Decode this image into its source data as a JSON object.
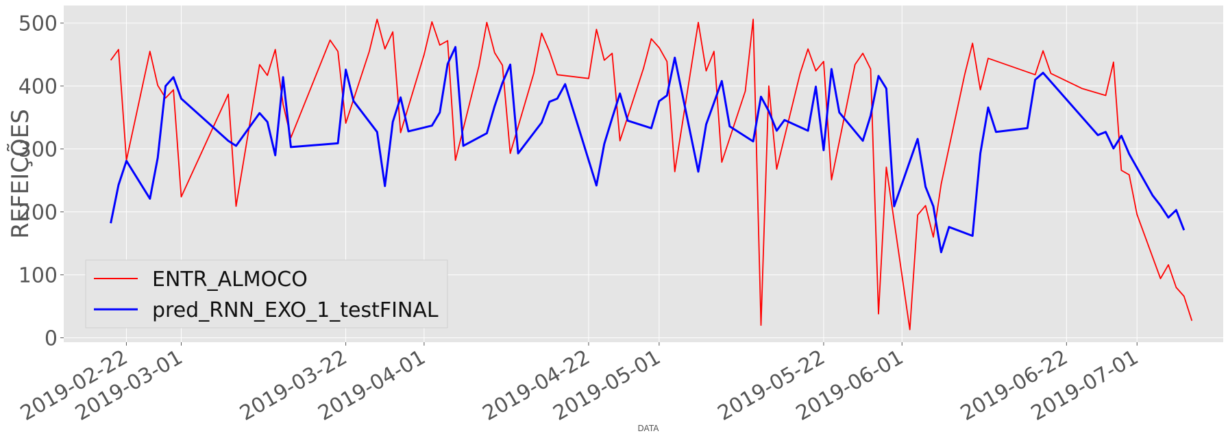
{
  "chart_data": {
    "type": "line",
    "title": "",
    "xlabel": "DATA",
    "ylabel": "REFEIÇÕES",
    "xlim": [
      "2019-02-14",
      "2019-07-12"
    ],
    "ylim": [
      -7,
      528
    ],
    "y_ticks": [
      0,
      100,
      200,
      300,
      400,
      500
    ],
    "x_tick_labels": [
      "2019-02-22",
      "2019-03-01",
      "2019-03-22",
      "2019-04-01",
      "2019-04-22",
      "2019-05-01",
      "2019-05-22",
      "2019-06-01",
      "2019-06-22",
      "2019-07-01"
    ],
    "grid": true,
    "legend_position": "bottom-left",
    "series": [
      {
        "name": "ENTR_ALMOCO",
        "color": "#ff0000",
        "points": [
          [
            "2019-02-20",
            441
          ],
          [
            "2019-02-21",
            458
          ],
          [
            "2019-02-22",
            282
          ],
          [
            "2019-02-25",
            455
          ],
          [
            "2019-02-26",
            401
          ],
          [
            "2019-02-27",
            381
          ],
          [
            "2019-02-28",
            394
          ],
          [
            "2019-03-01",
            224
          ],
          [
            "2019-03-07",
            387
          ],
          [
            "2019-03-08",
            209
          ],
          [
            "2019-03-11",
            434
          ],
          [
            "2019-03-12",
            417
          ],
          [
            "2019-03-13",
            458
          ],
          [
            "2019-03-14",
            371
          ],
          [
            "2019-03-15",
            318
          ],
          [
            "2019-03-20",
            473
          ],
          [
            "2019-03-21",
            455
          ],
          [
            "2019-03-22",
            341
          ],
          [
            "2019-03-25",
            455
          ],
          [
            "2019-03-26",
            506
          ],
          [
            "2019-03-27",
            459
          ],
          [
            "2019-03-28",
            486
          ],
          [
            "2019-03-29",
            326
          ],
          [
            "2019-04-01",
            450
          ],
          [
            "2019-04-02",
            502
          ],
          [
            "2019-04-03",
            465
          ],
          [
            "2019-04-04",
            472
          ],
          [
            "2019-04-05",
            282
          ],
          [
            "2019-04-08",
            432
          ],
          [
            "2019-04-09",
            501
          ],
          [
            "2019-04-10",
            453
          ],
          [
            "2019-04-11",
            433
          ],
          [
            "2019-04-12",
            293
          ],
          [
            "2019-04-15",
            420
          ],
          [
            "2019-04-16",
            484
          ],
          [
            "2019-04-17",
            455
          ],
          [
            "2019-04-18",
            418
          ],
          [
            "2019-04-22",
            412
          ],
          [
            "2019-04-23",
            490
          ],
          [
            "2019-04-24",
            441
          ],
          [
            "2019-04-25",
            452
          ],
          [
            "2019-04-26",
            313
          ],
          [
            "2019-04-29",
            428
          ],
          [
            "2019-04-30",
            475
          ],
          [
            "2019-05-01",
            461
          ],
          [
            "2019-05-02",
            439
          ],
          [
            "2019-05-03",
            264
          ],
          [
            "2019-05-06",
            501
          ],
          [
            "2019-05-07",
            424
          ],
          [
            "2019-05-08",
            455
          ],
          [
            "2019-05-09",
            279
          ],
          [
            "2019-05-12",
            392
          ],
          [
            "2019-05-13",
            506
          ],
          [
            "2019-05-14",
            20
          ],
          [
            "2019-05-15",
            400
          ],
          [
            "2019-05-16",
            268
          ],
          [
            "2019-05-19",
            420
          ],
          [
            "2019-05-20",
            459
          ],
          [
            "2019-05-21",
            424
          ],
          [
            "2019-05-22",
            439
          ],
          [
            "2019-05-23",
            251
          ],
          [
            "2019-05-26",
            434
          ],
          [
            "2019-05-27",
            452
          ],
          [
            "2019-05-28",
            427
          ],
          [
            "2019-05-29",
            38
          ],
          [
            "2019-05-30",
            271
          ],
          [
            "2019-06-02",
            13
          ],
          [
            "2019-06-03",
            195
          ],
          [
            "2019-06-04",
            210
          ],
          [
            "2019-06-05",
            160
          ],
          [
            "2019-06-06",
            244
          ],
          [
            "2019-06-09",
            418
          ],
          [
            "2019-06-10",
            468
          ],
          [
            "2019-06-11",
            394
          ],
          [
            "2019-06-12",
            444
          ],
          [
            "2019-06-18",
            418
          ],
          [
            "2019-06-19",
            456
          ],
          [
            "2019-06-20",
            420
          ],
          [
            "2019-06-24",
            396
          ],
          [
            "2019-06-27",
            385
          ],
          [
            "2019-06-28",
            438
          ],
          [
            "2019-06-29",
            266
          ],
          [
            "2019-06-30",
            259
          ],
          [
            "2019-07-01",
            196
          ],
          [
            "2019-07-04",
            94
          ],
          [
            "2019-07-05",
            116
          ],
          [
            "2019-07-06",
            80
          ],
          [
            "2019-07-07",
            66
          ],
          [
            "2019-07-08",
            27
          ]
        ]
      },
      {
        "name": "pred_RNN_EXO_1_testFINAL",
        "color": "#0000ff",
        "points": [
          [
            "2019-02-20",
            182
          ],
          [
            "2019-02-21",
            243
          ],
          [
            "2019-02-22",
            281
          ],
          [
            "2019-02-25",
            221
          ],
          [
            "2019-02-26",
            286
          ],
          [
            "2019-02-27",
            400
          ],
          [
            "2019-02-28",
            414
          ],
          [
            "2019-03-01",
            380
          ],
          [
            "2019-03-07",
            313
          ],
          [
            "2019-03-08",
            305
          ],
          [
            "2019-03-11",
            357
          ],
          [
            "2019-03-12",
            343
          ],
          [
            "2019-03-13",
            290
          ],
          [
            "2019-03-14",
            414
          ],
          [
            "2019-03-15",
            303
          ],
          [
            "2019-03-21",
            309
          ],
          [
            "2019-03-22",
            426
          ],
          [
            "2019-03-23",
            376
          ],
          [
            "2019-03-26",
            327
          ],
          [
            "2019-03-27",
            241
          ],
          [
            "2019-03-28",
            343
          ],
          [
            "2019-03-29",
            382
          ],
          [
            "2019-03-30",
            328
          ],
          [
            "2019-04-02",
            337
          ],
          [
            "2019-04-03",
            358
          ],
          [
            "2019-04-04",
            435
          ],
          [
            "2019-04-05",
            462
          ],
          [
            "2019-04-06",
            305
          ],
          [
            "2019-04-09",
            325
          ],
          [
            "2019-04-10",
            368
          ],
          [
            "2019-04-11",
            405
          ],
          [
            "2019-04-12",
            434
          ],
          [
            "2019-04-13",
            293
          ],
          [
            "2019-04-16",
            342
          ],
          [
            "2019-04-17",
            375
          ],
          [
            "2019-04-18",
            380
          ],
          [
            "2019-04-19",
            403
          ],
          [
            "2019-04-23",
            242
          ],
          [
            "2019-04-24",
            308
          ],
          [
            "2019-04-25",
            349
          ],
          [
            "2019-04-26",
            388
          ],
          [
            "2019-04-27",
            345
          ],
          [
            "2019-04-30",
            333
          ],
          [
            "2019-05-01",
            376
          ],
          [
            "2019-05-02",
            385
          ],
          [
            "2019-05-03",
            445
          ],
          [
            "2019-05-06",
            264
          ],
          [
            "2019-05-07",
            339
          ],
          [
            "2019-05-09",
            408
          ],
          [
            "2019-05-10",
            336
          ],
          [
            "2019-05-13",
            312
          ],
          [
            "2019-05-14",
            383
          ],
          [
            "2019-05-15",
            360
          ],
          [
            "2019-05-16",
            329
          ],
          [
            "2019-05-17",
            346
          ],
          [
            "2019-05-20",
            329
          ],
          [
            "2019-05-21",
            399
          ],
          [
            "2019-05-22",
            298
          ],
          [
            "2019-05-23",
            427
          ],
          [
            "2019-05-24",
            358
          ],
          [
            "2019-05-27",
            313
          ],
          [
            "2019-05-28",
            353
          ],
          [
            "2019-05-29",
            416
          ],
          [
            "2019-05-30",
            396
          ],
          [
            "2019-05-31",
            209
          ],
          [
            "2019-06-03",
            316
          ],
          [
            "2019-06-04",
            240
          ],
          [
            "2019-06-05",
            209
          ],
          [
            "2019-06-06",
            136
          ],
          [
            "2019-06-07",
            176
          ],
          [
            "2019-06-10",
            162
          ],
          [
            "2019-06-11",
            293
          ],
          [
            "2019-06-12",
            366
          ],
          [
            "2019-06-13",
            327
          ],
          [
            "2019-06-17",
            333
          ],
          [
            "2019-06-18",
            410
          ],
          [
            "2019-06-19",
            421
          ],
          [
            "2019-06-26",
            322
          ],
          [
            "2019-06-27",
            327
          ],
          [
            "2019-06-28",
            301
          ],
          [
            "2019-06-29",
            321
          ],
          [
            "2019-06-30",
            292
          ],
          [
            "2019-07-03",
            226
          ],
          [
            "2019-07-04",
            210
          ],
          [
            "2019-07-05",
            191
          ],
          [
            "2019-07-06",
            203
          ],
          [
            "2019-07-07",
            171
          ]
        ]
      }
    ]
  }
}
